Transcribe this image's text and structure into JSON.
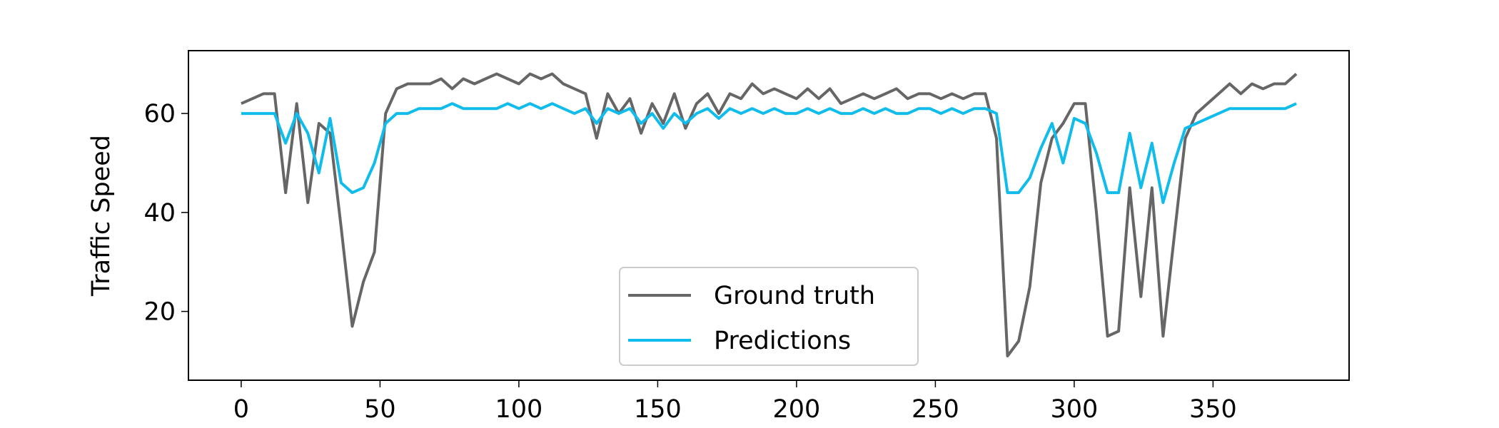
{
  "chart_data": {
    "type": "line",
    "ylabel": "Traffic Speed",
    "x": [
      0,
      4,
      8,
      12,
      16,
      20,
      24,
      28,
      32,
      36,
      40,
      44,
      48,
      52,
      56,
      60,
      64,
      68,
      72,
      76,
      80,
      84,
      88,
      92,
      96,
      100,
      104,
      108,
      112,
      116,
      120,
      124,
      128,
      132,
      136,
      140,
      144,
      148,
      152,
      156,
      160,
      164,
      168,
      172,
      176,
      180,
      184,
      188,
      192,
      196,
      200,
      204,
      208,
      212,
      216,
      220,
      224,
      228,
      232,
      236,
      240,
      244,
      248,
      252,
      256,
      260,
      264,
      268,
      272,
      276,
      280,
      284,
      288,
      292,
      296,
      300,
      304,
      308,
      312,
      316,
      320,
      324,
      328,
      332,
      336,
      340,
      344,
      348,
      352,
      356,
      360,
      364,
      368,
      372,
      376,
      380
    ],
    "series": [
      {
        "name": "Ground truth",
        "color": "#666666",
        "values": [
          62,
          63,
          64,
          64,
          44,
          62,
          42,
          58,
          56,
          37,
          17,
          26,
          32,
          60,
          65,
          66,
          66,
          66,
          67,
          65,
          67,
          66,
          67,
          68,
          67,
          66,
          68,
          67,
          68,
          66,
          65,
          64,
          55,
          64,
          60,
          63,
          56,
          62,
          58,
          64,
          57,
          62,
          64,
          60,
          64,
          63,
          66,
          64,
          65,
          64,
          63,
          65,
          63,
          65,
          62,
          63,
          64,
          63,
          64,
          65,
          63,
          64,
          64,
          63,
          64,
          63,
          64,
          64,
          55,
          11,
          14,
          25,
          46,
          55,
          58,
          62,
          62,
          40,
          15,
          16,
          45,
          23,
          45,
          15,
          35,
          55,
          60,
          62,
          64,
          66,
          64,
          66,
          65,
          66,
          66,
          68
        ]
      },
      {
        "name": "Predictions",
        "color": "#0fbcec",
        "values": [
          60,
          60,
          60,
          60,
          54,
          60,
          56,
          48,
          59,
          46,
          44,
          45,
          50,
          58,
          60,
          60,
          61,
          61,
          61,
          62,
          61,
          61,
          61,
          61,
          62,
          61,
          62,
          61,
          62,
          61,
          60,
          61,
          58,
          61,
          60,
          61,
          58,
          60,
          57,
          60,
          58,
          60,
          61,
          59,
          61,
          60,
          61,
          60,
          61,
          60,
          60,
          61,
          60,
          61,
          60,
          60,
          61,
          60,
          61,
          60,
          60,
          61,
          61,
          60,
          61,
          60,
          61,
          61,
          60,
          44,
          44,
          47,
          53,
          58,
          50,
          59,
          58,
          52,
          44,
          44,
          56,
          45,
          54,
          42,
          50,
          57,
          58,
          59,
          60,
          61,
          61,
          61,
          61,
          61,
          61,
          62
        ]
      }
    ],
    "xlim": [
      -19,
      399
    ],
    "xticks": [
      0,
      50,
      100,
      150,
      200,
      250,
      300,
      350
    ],
    "ylim": [
      6.1,
      72.7
    ],
    "yticks": [
      20,
      40,
      60
    ],
    "grid": false,
    "legend": "lower center"
  }
}
